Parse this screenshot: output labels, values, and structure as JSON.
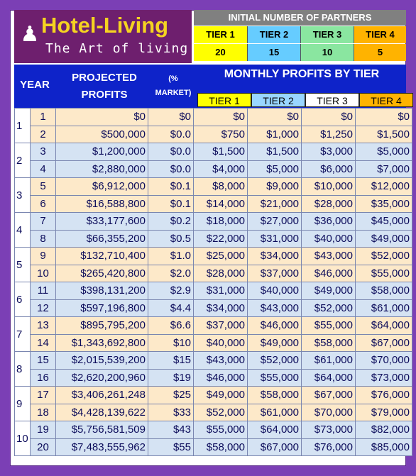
{
  "logo": {
    "name": "Hotel-Living",
    "tagline": "The Art of living",
    "icon": "waiter-icon"
  },
  "initial_partners": {
    "title": "INITIAL NUMBER OF PARTNERS",
    "tiers": [
      {
        "label": "TIER 1",
        "value": "20",
        "color": "#ffff00"
      },
      {
        "label": "TIER 2",
        "value": "15",
        "color": "#66ccff"
      },
      {
        "label": "TIER 3",
        "value": "10",
        "color": "#8ae6a0"
      },
      {
        "label": "TIER 4",
        "value": "5",
        "color": "#ffb300"
      }
    ]
  },
  "headers": {
    "year": "YEAR",
    "projected_profits": "PROJECTED PROFITS",
    "market": "(% MARKET)",
    "monthly": "MONTHLY PROFITS BY TIER",
    "sub_tiers": [
      {
        "label": "TIER 1",
        "color": "#ffff00"
      },
      {
        "label": "TIER 2",
        "color": "#99d6ff"
      },
      {
        "label": "TIER 3",
        "color": "#ffffff"
      },
      {
        "label": "TIER 4",
        "color": "#ffb300"
      }
    ]
  },
  "rows": [
    {
      "year": "1",
      "n": "1",
      "profit": "$0",
      "market": "$0",
      "t1": "$0",
      "t2": "$0",
      "t3": "$0",
      "t4": "$0"
    },
    {
      "year": "",
      "n": "2",
      "profit": "$500,000",
      "market": "$0.0",
      "t1": "$750",
      "t2": "$1,000",
      "t3": "$1,250",
      "t4": "$1,500"
    },
    {
      "year": "2",
      "n": "3",
      "profit": "$1,200,000",
      "market": "$0.0",
      "t1": "$1,500",
      "t2": "$1,500",
      "t3": "$3,000",
      "t4": "$5,000"
    },
    {
      "year": "",
      "n": "4",
      "profit": "$2,880,000",
      "market": "$0.0",
      "t1": "$4,000",
      "t2": "$5,000",
      "t3": "$6,000",
      "t4": "$7,000"
    },
    {
      "year": "3",
      "n": "5",
      "profit": "$6,912,000",
      "market": "$0.1",
      "t1": "$8,000",
      "t2": "$9,000",
      "t3": "$10,000",
      "t4": "$12,000"
    },
    {
      "year": "",
      "n": "6",
      "profit": "$16,588,800",
      "market": "$0.1",
      "t1": "$14,000",
      "t2": "$21,000",
      "t3": "$28,000",
      "t4": "$35,000"
    },
    {
      "year": "4",
      "n": "7",
      "profit": "$33,177,600",
      "market": "$0.2",
      "t1": "$18,000",
      "t2": "$27,000",
      "t3": "$36,000",
      "t4": "$45,000"
    },
    {
      "year": "",
      "n": "8",
      "profit": "$66,355,200",
      "market": "$0.5",
      "t1": "$22,000",
      "t2": "$31,000",
      "t3": "$40,000",
      "t4": "$49,000"
    },
    {
      "year": "5",
      "n": "9",
      "profit": "$132,710,400",
      "market": "$1.0",
      "t1": "$25,000",
      "t2": "$34,000",
      "t3": "$43,000",
      "t4": "$52,000"
    },
    {
      "year": "",
      "n": "10",
      "profit": "$265,420,800",
      "market": "$2.0",
      "t1": "$28,000",
      "t2": "$37,000",
      "t3": "$46,000",
      "t4": "$55,000"
    },
    {
      "year": "6",
      "n": "11",
      "profit": "$398,131,200",
      "market": "$2.9",
      "t1": "$31,000",
      "t2": "$40,000",
      "t3": "$49,000",
      "t4": "$58,000"
    },
    {
      "year": "",
      "n": "12",
      "profit": "$597,196,800",
      "market": "$4.4",
      "t1": "$34,000",
      "t2": "$43,000",
      "t3": "$52,000",
      "t4": "$61,000"
    },
    {
      "year": "7",
      "n": "13",
      "profit": "$895,795,200",
      "market": "$6.6",
      "t1": "$37,000",
      "t2": "$46,000",
      "t3": "$55,000",
      "t4": "$64,000"
    },
    {
      "year": "",
      "n": "14",
      "profit": "$1,343,692,800",
      "market": "$10",
      "t1": "$40,000",
      "t2": "$49,000",
      "t3": "$58,000",
      "t4": "$67,000"
    },
    {
      "year": "8",
      "n": "15",
      "profit": "$2,015,539,200",
      "market": "$15",
      "t1": "$43,000",
      "t2": "$52,000",
      "t3": "$61,000",
      "t4": "$70,000"
    },
    {
      "year": "",
      "n": "16",
      "profit": "$2,620,200,960",
      "market": "$19",
      "t1": "$46,000",
      "t2": "$55,000",
      "t3": "$64,000",
      "t4": "$73,000"
    },
    {
      "year": "9",
      "n": "17",
      "profit": "$3,406,261,248",
      "market": "$25",
      "t1": "$49,000",
      "t2": "$58,000",
      "t3": "$67,000",
      "t4": "$76,000"
    },
    {
      "year": "",
      "n": "18",
      "profit": "$4,428,139,622",
      "market": "$33",
      "t1": "$52,000",
      "t2": "$61,000",
      "t3": "$70,000",
      "t4": "$79,000"
    },
    {
      "year": "10",
      "n": "19",
      "profit": "$5,756,581,509",
      "market": "$43",
      "t1": "$55,000",
      "t2": "$64,000",
      "t3": "$73,000",
      "t4": "$82,000"
    },
    {
      "year": "",
      "n": "20",
      "profit": "$7,483,555,962",
      "market": "$55",
      "t1": "$58,000",
      "t2": "$67,000",
      "t3": "$76,000",
      "t4": "$85,000"
    }
  ]
}
